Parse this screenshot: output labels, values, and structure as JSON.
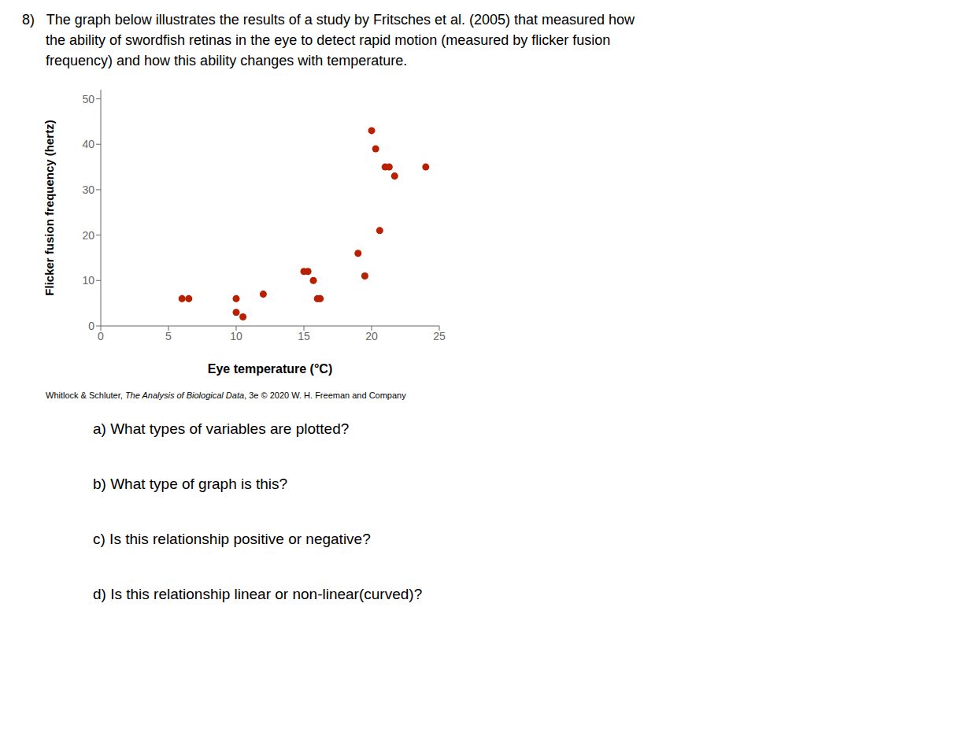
{
  "chart_data": {
    "type": "scatter",
    "x_label": "Eye temperature (°C)",
    "y_label": "Flicker fusion frequency (hertz)",
    "x": [
      6.0,
      6.5,
      10.0,
      10.0,
      10.5,
      12.0,
      15.0,
      15.3,
      15.7,
      16.0,
      16.2,
      19.0,
      19.5,
      20.0,
      20.3,
      20.6,
      21.0,
      21.3,
      21.7,
      24.0
    ],
    "values": [
      6,
      6,
      6,
      3,
      2,
      7,
      12,
      12,
      10,
      6,
      6,
      16,
      11,
      43,
      39,
      21,
      35,
      35,
      33,
      35
    ],
    "color": "#b82000",
    "xlim": [
      0,
      25
    ],
    "ylim": [
      0,
      52
    ],
    "xticks": [
      0,
      5,
      10,
      15,
      20,
      25
    ],
    "yticks": [
      0,
      10,
      20,
      30,
      40,
      50
    ],
    "annotations": [
      "8)   The graph below illustrates the results of a study by Fritsches et al. (2005) that measured how",
      "      the ability of swordfish retinas in the eye to detect rapid motion (measured by flicker fusion",
      "      frequency) and how this ability changes with temperature.",
      "Whitlock & Schluter, ",
      "The Analysis of Biological Data",
      ", 3e © 2020 W. H. Freeman and Company",
      "a) What types of variables are plotted?",
      "b) What type of graph is this?",
      "c) Is this relationship positive or negative?",
      "d) Is this relationship linear or non-linear(curved)?"
    ]
  }
}
